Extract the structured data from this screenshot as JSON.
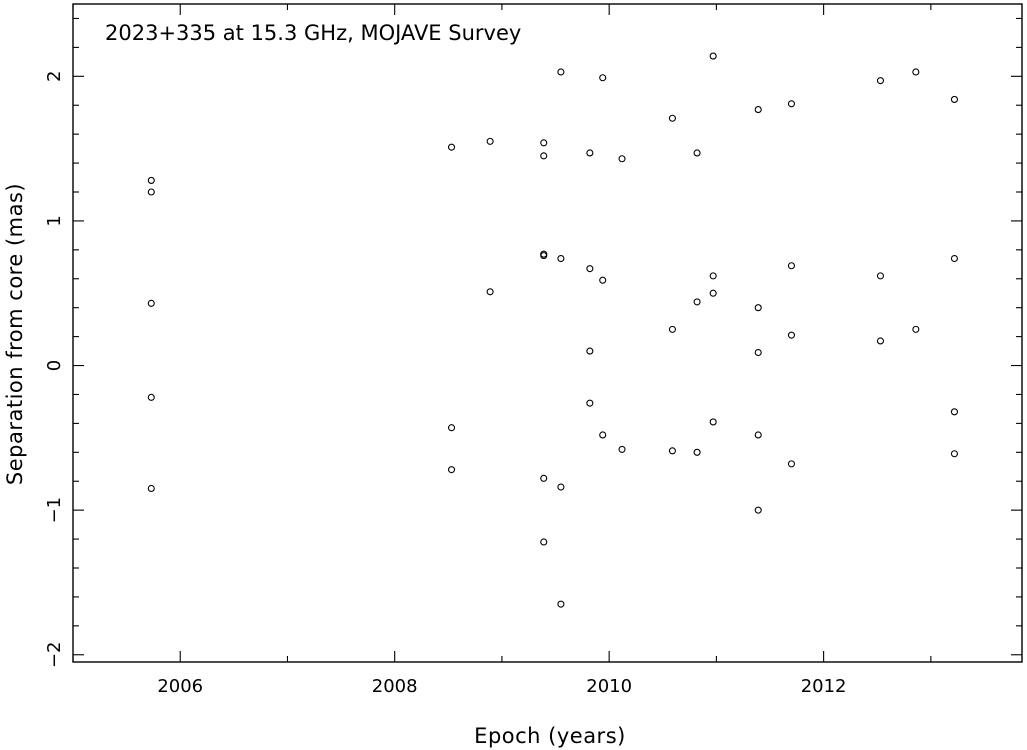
{
  "chart_data": {
    "type": "scatter",
    "title": "2023+335 at 15.3 GHz, MOJAVE Survey",
    "xlabel": "Epoch (years)",
    "ylabel": "Separation from core (mas)",
    "xlim": [
      2005.0,
      2013.85
    ],
    "ylim": [
      -2.05,
      2.5
    ],
    "x_ticks": [
      2006,
      2008,
      2010,
      2012
    ],
    "x_tick_labels": [
      "2006",
      "2008",
      "2010",
      "2012"
    ],
    "y_ticks": [
      -2,
      -1,
      0,
      1,
      2
    ],
    "y_tick_labels": [
      "−2",
      "−1",
      "0",
      "1",
      "2"
    ],
    "grid": false,
    "marker": "open-circle",
    "series": [
      {
        "points": [
          {
            "x": 2005.73,
            "y": 1.28
          },
          {
            "x": 2005.73,
            "y": 1.2
          },
          {
            "x": 2005.73,
            "y": 0.43
          },
          {
            "x": 2005.73,
            "y": -0.22
          },
          {
            "x": 2005.73,
            "y": -0.85
          },
          {
            "x": 2008.53,
            "y": 1.51
          },
          {
            "x": 2008.53,
            "y": -0.43
          },
          {
            "x": 2008.53,
            "y": -0.72
          },
          {
            "x": 2008.89,
            "y": 1.55
          },
          {
            "x": 2008.89,
            "y": 0.51
          },
          {
            "x": 2009.39,
            "y": 1.54
          },
          {
            "x": 2009.39,
            "y": 1.45
          },
          {
            "x": 2009.39,
            "y": 0.77
          },
          {
            "x": 2009.39,
            "y": 0.76
          },
          {
            "x": 2009.39,
            "y": -0.78
          },
          {
            "x": 2009.39,
            "y": -1.22
          },
          {
            "x": 2009.55,
            "y": 2.03
          },
          {
            "x": 2009.55,
            "y": 0.74
          },
          {
            "x": 2009.55,
            "y": -0.84
          },
          {
            "x": 2009.55,
            "y": -1.65
          },
          {
            "x": 2009.82,
            "y": 1.47
          },
          {
            "x": 2009.82,
            "y": 0.67
          },
          {
            "x": 2009.82,
            "y": 0.1
          },
          {
            "x": 2009.82,
            "y": -0.26
          },
          {
            "x": 2009.94,
            "y": 1.99
          },
          {
            "x": 2009.94,
            "y": 0.59
          },
          {
            "x": 2009.94,
            "y": -0.48
          },
          {
            "x": 2010.12,
            "y": 1.43
          },
          {
            "x": 2010.12,
            "y": -0.58
          },
          {
            "x": 2010.59,
            "y": 1.71
          },
          {
            "x": 2010.59,
            "y": 0.25
          },
          {
            "x": 2010.59,
            "y": -0.59
          },
          {
            "x": 2010.82,
            "y": 1.47
          },
          {
            "x": 2010.82,
            "y": 0.44
          },
          {
            "x": 2010.82,
            "y": -0.6
          },
          {
            "x": 2010.97,
            "y": 2.14
          },
          {
            "x": 2010.97,
            "y": 0.62
          },
          {
            "x": 2010.97,
            "y": 0.5
          },
          {
            "x": 2010.97,
            "y": -0.39
          },
          {
            "x": 2011.39,
            "y": 1.77
          },
          {
            "x": 2011.39,
            "y": 0.4
          },
          {
            "x": 2011.39,
            "y": 0.09
          },
          {
            "x": 2011.39,
            "y": -0.48
          },
          {
            "x": 2011.39,
            "y": -1.0
          },
          {
            "x": 2011.7,
            "y": 1.81
          },
          {
            "x": 2011.7,
            "y": 0.69
          },
          {
            "x": 2011.7,
            "y": 0.21
          },
          {
            "x": 2011.7,
            "y": -0.68
          },
          {
            "x": 2012.53,
            "y": 1.97
          },
          {
            "x": 2012.53,
            "y": 0.62
          },
          {
            "x": 2012.53,
            "y": 0.17
          },
          {
            "x": 2012.86,
            "y": 2.03
          },
          {
            "x": 2012.86,
            "y": 0.25
          },
          {
            "x": 2013.22,
            "y": 1.84
          },
          {
            "x": 2013.22,
            "y": 0.74
          },
          {
            "x": 2013.22,
            "y": -0.32
          },
          {
            "x": 2013.22,
            "y": -0.61
          }
        ]
      }
    ]
  }
}
